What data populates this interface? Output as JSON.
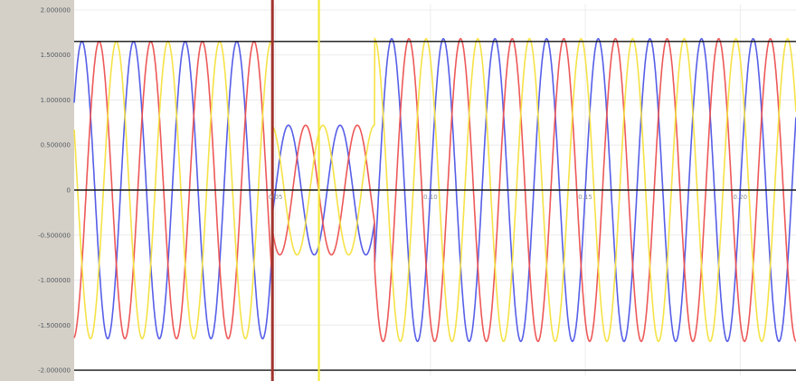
{
  "chart_data": {
    "type": "line",
    "title": "",
    "xlabel": "",
    "ylabel": "",
    "grid": true,
    "legend": "none",
    "y_tick_labels": [
      "2.000000",
      "1.500000",
      "1.000000",
      "0.500000",
      "0",
      "-0.500000",
      "-1.000000",
      "-1.500000",
      "-2.000000"
    ],
    "y_tick_values": [
      2.0,
      1.5,
      1.0,
      0.5,
      0.0,
      -0.5,
      -1.0,
      -1.5,
      -2.0
    ],
    "x_tick_labels": [
      "0.05",
      "0.10",
      "0.15",
      "0.20"
    ],
    "x_tick_values": [
      0.05,
      0.1,
      0.15,
      0.2
    ],
    "xlim": [
      -0.015,
      0.218
    ],
    "ylim": [
      -2.06,
      2.06
    ],
    "frequency_hz": 60,
    "reference_lines_y": [
      1.65,
      0.0,
      -2.0
    ],
    "cursors": [
      {
        "x": 0.049,
        "color": "#a0342c"
      },
      {
        "x": 0.064,
        "color": "#f4e83a"
      }
    ],
    "segments": [
      {
        "x_start": -0.015,
        "x_end": 0.049,
        "amplitude": 1.65
      },
      {
        "x_start": 0.049,
        "x_end": 0.082,
        "amplitude": 0.72
      },
      {
        "x_start": 0.082,
        "x_end": 0.218,
        "amplitude": 1.68
      }
    ],
    "series": [
      {
        "color": "#4d55e6",
        "phase_deg": 0
      },
      {
        "color": "#ec4f4f",
        "phase_deg": 120
      },
      {
        "color": "#f4e03c",
        "phase_deg": 240
      }
    ],
    "colors": {
      "axis_panel": "#d4d0c8",
      "grid": "#ececec",
      "reference_line": "#101010"
    }
  }
}
